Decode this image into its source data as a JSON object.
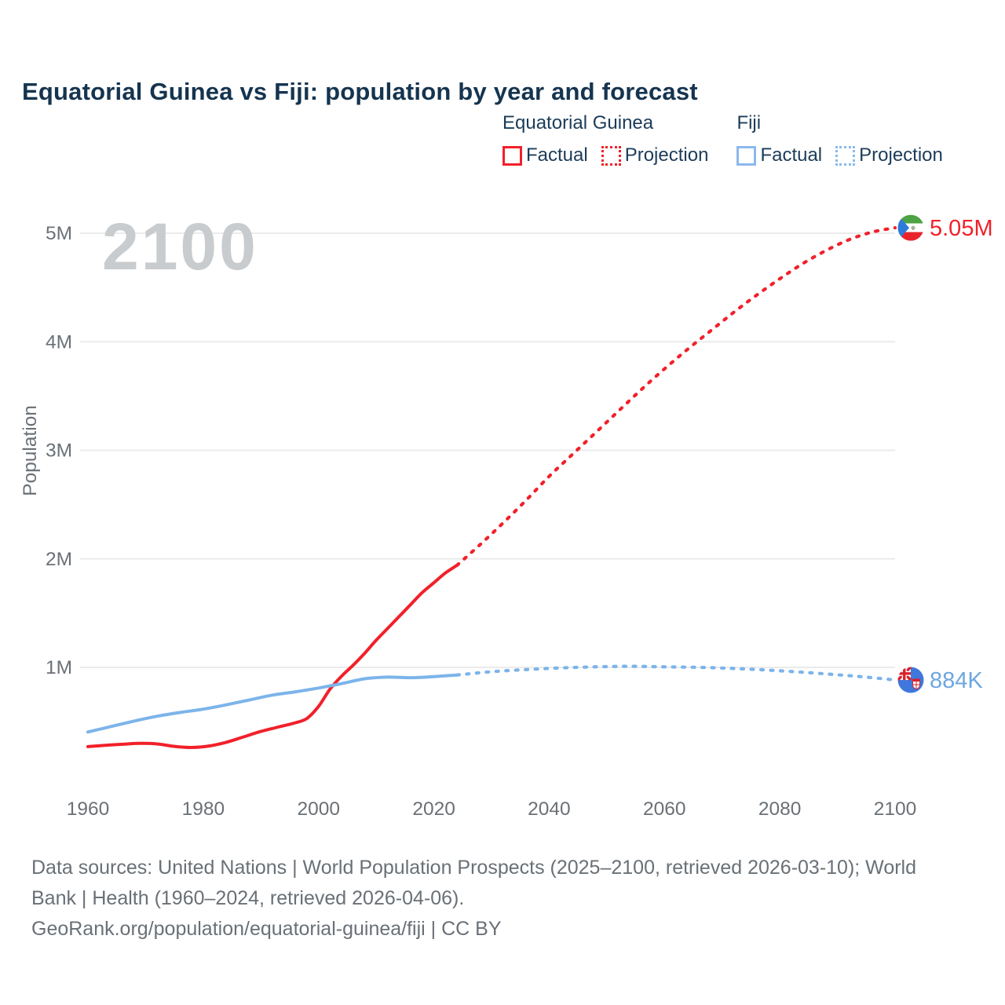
{
  "title": "Equatorial Guinea vs Fiji: population by year and forecast",
  "watermark": "2100",
  "legend": {
    "groups": [
      {
        "name": "Equatorial Guinea",
        "items": [
          {
            "label": "Factual",
            "style": "solid",
            "color": "#f1202a"
          },
          {
            "label": "Projection",
            "style": "dotted",
            "color": "#f1202a"
          }
        ]
      },
      {
        "name": "Fiji",
        "items": [
          {
            "label": "Factual",
            "style": "solid",
            "color": "#8bb9ec"
          },
          {
            "label": "Projection",
            "style": "dotted",
            "color": "#8bb9ec"
          }
        ]
      }
    ]
  },
  "chart_data": {
    "type": "line",
    "title": "Equatorial Guinea vs Fiji: population by year and forecast",
    "xlabel": "",
    "ylabel": "Population",
    "watermark_year": "2100",
    "grid": true,
    "legend_position": "top-right",
    "x_range": [
      1960,
      2100
    ],
    "x_ticks": [
      1960,
      1980,
      2000,
      2020,
      2040,
      2060,
      2080,
      2100
    ],
    "y_ticks": [
      {
        "value": 1,
        "label": "1M"
      },
      {
        "value": 2,
        "label": "2M"
      },
      {
        "value": 3,
        "label": "3M"
      },
      {
        "value": 4,
        "label": "4M"
      },
      {
        "value": 5,
        "label": "5M"
      }
    ],
    "unit": "millions",
    "series": [
      {
        "name": "Equatorial Guinea",
        "color": "#f1202a",
        "label_color": "#f1202a",
        "end_label": "5.05M",
        "end_value": 5.05,
        "flag": "equatorial-guinea",
        "factual": [
          [
            1960,
            0.27
          ],
          [
            1963,
            0.282
          ],
          [
            1966,
            0.292
          ],
          [
            1969,
            0.3
          ],
          [
            1972,
            0.295
          ],
          [
            1975,
            0.272
          ],
          [
            1978,
            0.262
          ],
          [
            1981,
            0.276
          ],
          [
            1984,
            0.31
          ],
          [
            1987,
            0.36
          ],
          [
            1990,
            0.41
          ],
          [
            1993,
            0.45
          ],
          [
            1996,
            0.49
          ],
          [
            1998,
            0.53
          ],
          [
            2000,
            0.64
          ],
          [
            2002,
            0.8
          ],
          [
            2004,
            0.92
          ],
          [
            2006,
            1.02
          ],
          [
            2008,
            1.13
          ],
          [
            2010,
            1.25
          ],
          [
            2012,
            1.36
          ],
          [
            2014,
            1.47
          ],
          [
            2016,
            1.58
          ],
          [
            2018,
            1.69
          ],
          [
            2020,
            1.78
          ],
          [
            2022,
            1.87
          ],
          [
            2024,
            1.94
          ]
        ],
        "projection": [
          [
            2024,
            1.94
          ],
          [
            2028,
            2.13
          ],
          [
            2032,
            2.33
          ],
          [
            2036,
            2.54
          ],
          [
            2040,
            2.76
          ],
          [
            2044,
            2.96
          ],
          [
            2048,
            3.16
          ],
          [
            2052,
            3.36
          ],
          [
            2056,
            3.56
          ],
          [
            2060,
            3.75
          ],
          [
            2064,
            3.93
          ],
          [
            2068,
            4.1
          ],
          [
            2072,
            4.27
          ],
          [
            2076,
            4.43
          ],
          [
            2080,
            4.58
          ],
          [
            2084,
            4.72
          ],
          [
            2088,
            4.84
          ],
          [
            2092,
            4.94
          ],
          [
            2096,
            5.01
          ],
          [
            2100,
            5.05
          ]
        ]
      },
      {
        "name": "Fiji",
        "color": "#7cb4ea",
        "label_color": "#6ea6e0",
        "end_label": "884K",
        "end_value": 0.884,
        "flag": "fiji",
        "factual": [
          [
            1960,
            0.405
          ],
          [
            1964,
            0.455
          ],
          [
            1968,
            0.505
          ],
          [
            1972,
            0.55
          ],
          [
            1976,
            0.585
          ],
          [
            1980,
            0.615
          ],
          [
            1984,
            0.655
          ],
          [
            1988,
            0.7
          ],
          [
            1992,
            0.745
          ],
          [
            1996,
            0.775
          ],
          [
            2000,
            0.81
          ],
          [
            2004,
            0.85
          ],
          [
            2008,
            0.895
          ],
          [
            2012,
            0.91
          ],
          [
            2016,
            0.905
          ],
          [
            2020,
            0.915
          ],
          [
            2024,
            0.93
          ]
        ],
        "projection": [
          [
            2024,
            0.93
          ],
          [
            2030,
            0.96
          ],
          [
            2036,
            0.98
          ],
          [
            2042,
            0.995
          ],
          [
            2048,
            1.005
          ],
          [
            2054,
            1.01
          ],
          [
            2060,
            1.005
          ],
          [
            2066,
            1.0
          ],
          [
            2072,
            0.99
          ],
          [
            2078,
            0.975
          ],
          [
            2084,
            0.955
          ],
          [
            2090,
            0.932
          ],
          [
            2095,
            0.91
          ],
          [
            2100,
            0.884
          ]
        ]
      }
    ]
  },
  "source": {
    "lines": [
      "Data sources: United Nations | World Population Prospects (2025–2100, retrieved 2026-03-10); World",
      "Bank | Health (1960–2024, retrieved 2026-04-06).",
      "GeoRank.org/population/equatorial-guinea/fiji | CC BY"
    ]
  }
}
